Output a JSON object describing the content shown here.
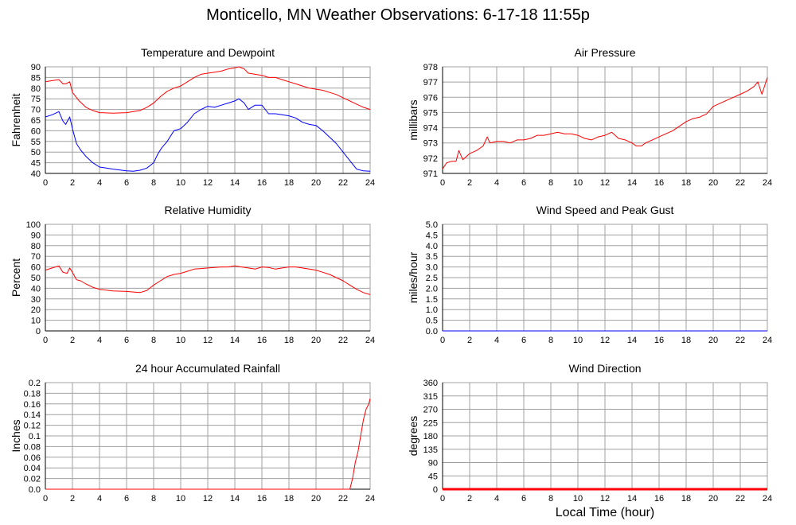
{
  "page_title": "Monticello, MN Weather Observations: 6-17-18 11:55p",
  "x_axis_label": "Local Time (hour)",
  "colors": {
    "temperature": "#ff0000",
    "dewpoint": "#0000ff",
    "grid": "#a0a0a0",
    "axis": "#000000"
  },
  "chart_data": [
    {
      "type": "line",
      "title": "Temperature and Dewpoint",
      "ylabel": "Fahrenheit",
      "xlim": [
        0,
        24
      ],
      "ylim": [
        40,
        90
      ],
      "x_ticks": [
        0,
        2,
        4,
        6,
        8,
        10,
        12,
        14,
        16,
        18,
        20,
        22,
        24
      ],
      "y_ticks": [
        40,
        45,
        50,
        55,
        60,
        65,
        70,
        75,
        80,
        85,
        90
      ],
      "grid": true,
      "series": [
        {
          "color": "#ff0000",
          "x": [
            0,
            0.5,
            1,
            1.3,
            1.5,
            1.8,
            2,
            2.5,
            3,
            3.5,
            4,
            5,
            6,
            7,
            7.5,
            8,
            8.5,
            9,
            9.5,
            10,
            10.5,
            11,
            11.5,
            12,
            12.5,
            13,
            13.5,
            14,
            14.3,
            14.7,
            15,
            15.5,
            16,
            16.5,
            17,
            17.5,
            18,
            18.5,
            19,
            19.5,
            20,
            20.5,
            21,
            21.5,
            22,
            22.5,
            23,
            23.5,
            24
          ],
          "y": [
            83,
            83.5,
            84,
            82,
            82,
            83,
            78,
            74,
            71,
            69.5,
            68.5,
            68.3,
            68.5,
            69.5,
            71,
            73,
            76,
            78.5,
            80,
            81,
            83,
            85,
            86.5,
            87,
            87.5,
            88,
            89,
            89.5,
            90,
            89,
            87,
            86.5,
            86,
            85,
            85,
            84,
            83,
            82,
            81,
            80,
            79.5,
            79,
            78,
            77,
            75.5,
            74,
            72.5,
            71,
            70
          ]
        },
        {
          "color": "#0000ff",
          "x": [
            0,
            0.5,
            1,
            1.3,
            1.5,
            1.8,
            2,
            2.3,
            2.6,
            3,
            3.5,
            4,
            4.5,
            5,
            6,
            6.5,
            7,
            7.5,
            8,
            8.3,
            8.6,
            9,
            9.5,
            10,
            10.5,
            11,
            11.5,
            12,
            12.5,
            13,
            13.5,
            14,
            14.3,
            14.7,
            15,
            15.5,
            16,
            16.5,
            17,
            17.5,
            18,
            18.5,
            19,
            19.5,
            20,
            20.5,
            21,
            21.5,
            22,
            22.5,
            23,
            23.5,
            24
          ],
          "y": [
            66.5,
            67.5,
            69,
            64.5,
            63,
            66.5,
            61,
            54,
            51,
            48,
            45,
            43,
            42.5,
            42,
            41.2,
            41,
            41.5,
            42.5,
            45,
            49,
            52,
            55,
            60,
            61,
            64,
            68,
            70,
            71.5,
            71,
            72,
            73,
            74,
            75,
            73,
            70,
            72,
            72,
            68,
            68,
            67.5,
            67,
            66,
            64,
            63,
            62.5,
            60,
            57,
            54,
            50,
            46,
            42,
            41.2,
            41
          ]
        }
      ]
    },
    {
      "type": "line",
      "title": "Air Pressure",
      "ylabel": "millibars",
      "xlim": [
        0,
        24
      ],
      "ylim": [
        971,
        978
      ],
      "x_ticks": [
        0,
        2,
        4,
        6,
        8,
        10,
        12,
        14,
        16,
        18,
        20,
        22,
        24
      ],
      "y_ticks": [
        971,
        972,
        973,
        974,
        975,
        976,
        977,
        978
      ],
      "grid": true,
      "series": [
        {
          "color": "#ff0000",
          "x": [
            0,
            0.3,
            0.7,
            1,
            1.2,
            1.5,
            2,
            2.5,
            3,
            3.3,
            3.5,
            4,
            4.5,
            5,
            5.5,
            6,
            6.5,
            7,
            7.5,
            8,
            8.5,
            9,
            9.5,
            10,
            10.5,
            11,
            11.5,
            12,
            12.5,
            13,
            13.5,
            14,
            14.3,
            14.7,
            15,
            15.5,
            16,
            16.5,
            17,
            17.5,
            18,
            18.5,
            19,
            19.5,
            20,
            20.5,
            21,
            21.5,
            22,
            22.5,
            23,
            23.3,
            23.6,
            24
          ],
          "y": [
            971.3,
            971.7,
            971.8,
            971.8,
            972.5,
            971.9,
            972.3,
            972.5,
            972.8,
            973.4,
            973,
            973.1,
            973.1,
            973,
            973.2,
            973.2,
            973.3,
            973.5,
            973.5,
            973.6,
            973.7,
            973.6,
            973.6,
            973.5,
            973.3,
            973.2,
            973.4,
            973.5,
            973.7,
            973.3,
            973.2,
            973.0,
            972.8,
            972.8,
            973.0,
            973.2,
            973.4,
            973.6,
            973.8,
            974.1,
            974.4,
            974.6,
            974.7,
            974.9,
            975.4,
            975.6,
            975.8,
            976.0,
            976.2,
            976.4,
            976.7,
            977.0,
            976.2,
            977.3
          ]
        }
      ]
    },
    {
      "type": "line",
      "title": "Relative Humidity",
      "ylabel": "Percent",
      "xlim": [
        0,
        24
      ],
      "ylim": [
        0,
        100
      ],
      "x_ticks": [
        0,
        2,
        4,
        6,
        8,
        10,
        12,
        14,
        16,
        18,
        20,
        22,
        24
      ],
      "y_ticks": [
        0,
        10,
        20,
        30,
        40,
        50,
        60,
        70,
        80,
        90,
        100
      ],
      "grid": true,
      "series": [
        {
          "color": "#ff0000",
          "x": [
            0,
            0.5,
            1,
            1.3,
            1.6,
            1.8,
            2,
            2.3,
            2.6,
            3,
            3.5,
            4,
            5,
            6,
            6.5,
            7,
            7.5,
            8,
            8.5,
            9,
            9.5,
            10,
            10.5,
            11,
            11.5,
            12,
            12.5,
            13,
            13.5,
            14,
            14.5,
            15,
            15.5,
            16,
            16.5,
            17,
            17.5,
            18,
            18.5,
            19,
            19.5,
            20,
            20.5,
            21,
            21.5,
            22,
            22.5,
            23,
            23.5,
            24
          ],
          "y": [
            57,
            59,
            61,
            55,
            54,
            59,
            55,
            48,
            47,
            44,
            41,
            39,
            37.5,
            37,
            36.5,
            36,
            38,
            43,
            47,
            51,
            53,
            54,
            56,
            58,
            58.5,
            59,
            59.5,
            60,
            60,
            61,
            60,
            59,
            58,
            60,
            59.5,
            58,
            59,
            60,
            60,
            59,
            58,
            57,
            55,
            53,
            50,
            47,
            43,
            39,
            36,
            34
          ]
        }
      ]
    },
    {
      "type": "line",
      "title": "Wind Speed and Peak Gust",
      "ylabel": "miles/hour",
      "xlim": [
        0,
        24
      ],
      "ylim": [
        0,
        5
      ],
      "x_ticks": [
        0,
        2,
        4,
        6,
        8,
        10,
        12,
        14,
        16,
        18,
        20,
        22,
        24
      ],
      "y_ticks": [
        0.0,
        0.5,
        1.0,
        1.5,
        2.0,
        2.5,
        3.0,
        3.5,
        4.0,
        4.5,
        5.0
      ],
      "y_tick_labels": [
        "0.0",
        "0.5",
        "1.0",
        "1.5",
        "2.0",
        "2.5",
        "3.0",
        "3.5",
        "4.0",
        "4.5",
        "5.0"
      ],
      "grid": true,
      "series": [
        {
          "color": "#0000ff",
          "x": [
            0,
            24
          ],
          "y": [
            0,
            0
          ]
        }
      ]
    },
    {
      "type": "line",
      "title": "24 hour Accumulated Rainfall",
      "ylabel": "Inches",
      "xlim": [
        0,
        24
      ],
      "ylim": [
        0,
        0.2
      ],
      "x_ticks": [
        0,
        2,
        4,
        6,
        8,
        10,
        12,
        14,
        16,
        18,
        20,
        22,
        24
      ],
      "y_ticks": [
        0.0,
        0.02,
        0.04,
        0.06,
        0.08,
        0.1,
        0.12,
        0.14,
        0.16,
        0.18,
        0.2
      ],
      "y_tick_labels": [
        "0.0",
        "0.02",
        "0.04",
        "0.06",
        "0.08",
        "0.1",
        "0.12",
        "0.14",
        "0.16",
        "0.18",
        "0.2"
      ],
      "grid": true,
      "series": [
        {
          "color": "#ff0000",
          "x": [
            0,
            22.5,
            22.7,
            22.9,
            23.1,
            23.3,
            23.5,
            23.7,
            23.9,
            24
          ],
          "y": [
            0,
            0,
            0.02,
            0.05,
            0.07,
            0.1,
            0.13,
            0.15,
            0.16,
            0.17
          ]
        }
      ]
    },
    {
      "type": "line",
      "title": "Wind Direction",
      "ylabel": "degrees",
      "xlim": [
        0,
        24
      ],
      "ylim": [
        0,
        360
      ],
      "x_ticks": [
        0,
        2,
        4,
        6,
        8,
        10,
        12,
        14,
        16,
        18,
        20,
        22,
        24
      ],
      "y_ticks": [
        0,
        45,
        90,
        135,
        180,
        225,
        270,
        315,
        360
      ],
      "grid": true,
      "series": [
        {
          "color": "#ff0000",
          "x": [
            0,
            24
          ],
          "y": [
            0,
            0
          ],
          "thick": true
        }
      ]
    }
  ]
}
